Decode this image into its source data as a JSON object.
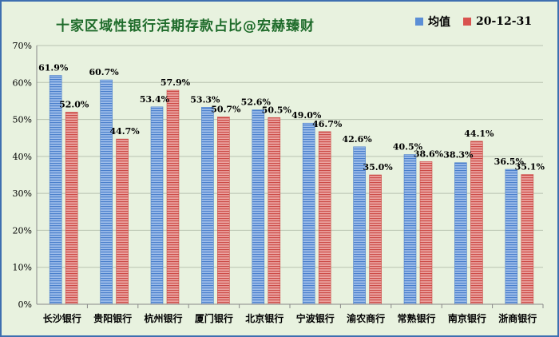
{
  "chart_data": {
    "type": "bar",
    "title": "十家区域性银行活期存款占比@宏赫臻财",
    "categories": [
      "长沙银行",
      "贵阳银行",
      "杭州银行",
      "厦门银行",
      "北京银行",
      "宁波银行",
      "渝农商行",
      "常熟银行",
      "南京银行",
      "浙商银行"
    ],
    "series": [
      {
        "name": "均值",
        "values": [
          61.9,
          60.7,
          53.4,
          53.3,
          52.6,
          49.0,
          42.6,
          40.5,
          38.3,
          36.5
        ],
        "labels": [
          "61.9%",
          "60.7%",
          "53.4%",
          "53.3%",
          "52.6%",
          "49.0%",
          "42.6%",
          "40.5%",
          "38.3%",
          "36.5%"
        ],
        "color": "#5b8fd6"
      },
      {
        "name": "20-12-31",
        "values": [
          52.0,
          44.7,
          57.9,
          50.7,
          50.5,
          46.7,
          35.0,
          38.6,
          44.1,
          35.1
        ],
        "labels": [
          "52.0%",
          "44.7%",
          "57.9%",
          "50.7%",
          "50.5%",
          "46.7%",
          "35.0%",
          "38.6%",
          "44.1%",
          "35.1%"
        ],
        "color": "#d9534f"
      }
    ],
    "ylim": [
      0,
      70
    ],
    "yticks": [
      "0%",
      "10%",
      "20%",
      "30%",
      "40%",
      "50%",
      "60%",
      "70%"
    ],
    "grid": true,
    "legend": "top-right"
  }
}
